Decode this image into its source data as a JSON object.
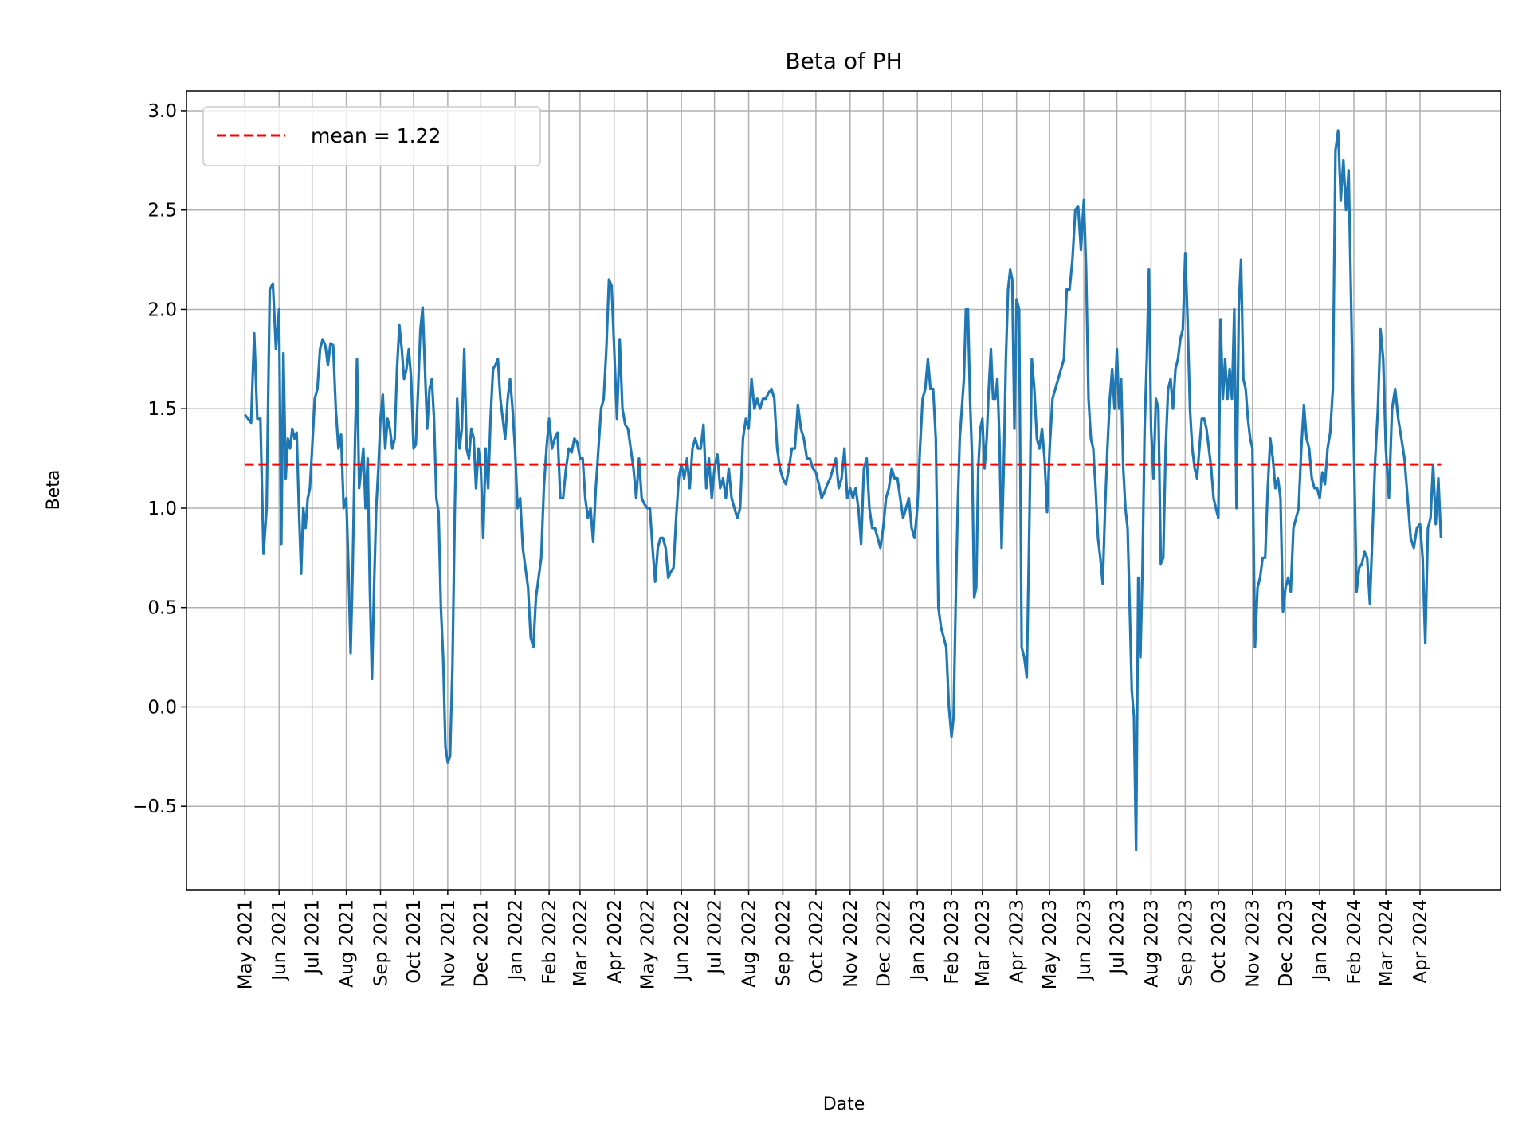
{
  "chart_data": {
    "type": "line",
    "title": "Beta of PH",
    "xlabel": "Date",
    "ylabel": "Beta",
    "ylim": [
      -0.92,
      3.1
    ],
    "xlim": [
      "2021-03-09",
      "2024-06-13"
    ],
    "grid": true,
    "legend_position": "top-left",
    "y_ticks": [
      -0.5,
      0.0,
      0.5,
      1.0,
      1.5,
      2.0,
      2.5,
      3.0
    ],
    "y_tick_labels": [
      "−0.5",
      "0.0",
      "0.5",
      "1.0",
      "1.5",
      "2.0",
      "2.5",
      "3.0"
    ],
    "x_ticks": [
      "2021-05-01",
      "2021-06-01",
      "2021-07-01",
      "2021-08-01",
      "2021-09-01",
      "2021-10-01",
      "2021-11-01",
      "2021-12-01",
      "2022-01-01",
      "2022-02-01",
      "2022-03-01",
      "2022-04-01",
      "2022-05-01",
      "2022-06-01",
      "2022-07-01",
      "2022-08-01",
      "2022-09-01",
      "2022-10-01",
      "2022-11-01",
      "2022-12-01",
      "2023-01-01",
      "2023-02-01",
      "2023-03-01",
      "2023-04-01",
      "2023-05-01",
      "2023-06-01",
      "2023-07-01",
      "2023-08-01",
      "2023-09-01",
      "2023-10-01",
      "2023-11-01",
      "2023-12-01",
      "2024-01-01",
      "2024-02-01",
      "2024-03-01",
      "2024-04-01"
    ],
    "x_tick_labels": [
      "May 2021",
      "Jun 2021",
      "Jul 2021",
      "Aug 2021",
      "Sep 2021",
      "Oct 2021",
      "Nov 2021",
      "Dec 2021",
      "Jan 2022",
      "Feb 2022",
      "Mar 2022",
      "Apr 2022",
      "May 2022",
      "Jun 2022",
      "Jul 2022",
      "Aug 2022",
      "Sep 2022",
      "Oct 2022",
      "Nov 2022",
      "Dec 2022",
      "Jan 2023",
      "Feb 2023",
      "Mar 2023",
      "Apr 2023",
      "May 2023",
      "Jun 2023",
      "Jul 2023",
      "Aug 2023",
      "Sep 2023",
      "Oct 2023",
      "Nov 2023",
      "Dec 2023",
      "Jan 2024",
      "Feb 2024",
      "Mar 2024",
      "Apr 2024"
    ],
    "colors": {
      "series": "#1f77b4",
      "mean": "#ff0000",
      "grid": "#b0b0b0"
    },
    "mean": {
      "label": "mean = 1.22",
      "value": 1.22,
      "style": "dashed"
    },
    "series": {
      "end_date": "2024-04-20",
      "monthly": [
        {
          "month": "2021-05",
          "values": [
            1.47,
            1.45,
            1.43,
            1.88,
            1.45,
            1.45,
            0.77,
            1.0,
            2.1,
            2.13,
            1.8
          ]
        },
        {
          "month": "2021-06",
          "values": [
            2.0,
            0.82,
            1.78,
            1.15,
            1.35,
            1.3,
            1.4,
            1.35,
            1.38,
            1.0,
            0.67,
            1.0,
            0.9,
            1.05,
            1.1
          ]
        },
        {
          "month": "2021-07",
          "values": [
            1.3,
            1.55,
            1.6,
            1.8,
            1.85,
            1.82,
            1.72,
            1.83,
            1.82,
            1.5,
            1.3,
            1.37,
            1.0
          ]
        },
        {
          "month": "2021-08",
          "values": [
            1.05,
            0.7,
            0.27,
            0.7,
            1.3,
            1.75,
            1.1,
            1.2,
            1.3,
            1.0,
            1.25,
            0.6,
            0.14,
            0.6,
            1.0,
            1.2
          ]
        },
        {
          "month": "2021-09",
          "values": [
            1.45,
            1.57,
            1.3,
            1.45,
            1.4,
            1.3,
            1.35,
            1.7,
            1.92,
            1.8,
            1.65,
            1.7,
            1.8,
            1.65
          ]
        },
        {
          "month": "2021-10",
          "values": [
            1.3,
            1.32,
            1.6,
            1.9,
            2.01,
            1.7,
            1.4,
            1.6,
            1.65,
            1.45,
            1.05,
            0.98,
            0.5,
            0.25,
            -0.2
          ]
        },
        {
          "month": "2021-11",
          "values": [
            -0.28,
            -0.25,
            0.2,
            1.0,
            1.55,
            1.3,
            1.4,
            1.8,
            1.3,
            1.25,
            1.4,
            1.35,
            1.1,
            1.3
          ]
        },
        {
          "month": "2021-12",
          "values": [
            1.2,
            0.85,
            1.3,
            1.1,
            1.45,
            1.7,
            1.72,
            1.75,
            1.55,
            1.45,
            1.35,
            1.55,
            1.65,
            1.5
          ]
        },
        {
          "month": "2022-01",
          "values": [
            1.3,
            1.0,
            1.05,
            0.8,
            0.7,
            0.6,
            0.35,
            0.3,
            0.55,
            0.65,
            0.75,
            1.1,
            1.3
          ]
        },
        {
          "month": "2022-02",
          "values": [
            1.45,
            1.3,
            1.35,
            1.38,
            1.05,
            1.05,
            1.2,
            1.3,
            1.28,
            1.35,
            1.33
          ]
        },
        {
          "month": "2022-03",
          "values": [
            1.25,
            1.25,
            1.05,
            0.95,
            1.0,
            0.83,
            1.1,
            1.3,
            1.5,
            1.55,
            1.8,
            2.15,
            2.12
          ]
        },
        {
          "month": "2022-04",
          "values": [
            1.8,
            1.45,
            1.85,
            1.5,
            1.42,
            1.4,
            1.3,
            1.2,
            1.05,
            1.25,
            1.05,
            1.02
          ]
        },
        {
          "month": "2022-05",
          "values": [
            1.0,
            1.0,
            0.8,
            0.63,
            0.8,
            0.85,
            0.85,
            0.8,
            0.65,
            0.68,
            0.7,
            0.95,
            1.15
          ]
        },
        {
          "month": "2022-06",
          "values": [
            1.22,
            1.15,
            1.25,
            1.1,
            1.3,
            1.35,
            1.3,
            1.3,
            1.42,
            1.1,
            1.25,
            1.05
          ]
        },
        {
          "month": "2022-07",
          "values": [
            1.2,
            1.27,
            1.1,
            1.15,
            1.05,
            1.2,
            1.05,
            1.0,
            0.95,
            1.0,
            1.35,
            1.45
          ]
        },
        {
          "month": "2022-08",
          "values": [
            1.4,
            1.65,
            1.5,
            1.55,
            1.5,
            1.55,
            1.55,
            1.58,
            1.6,
            1.55,
            1.3,
            1.2
          ]
        },
        {
          "month": "2022-09",
          "values": [
            1.15,
            1.12,
            1.2,
            1.3,
            1.3,
            1.52,
            1.4,
            1.35,
            1.25,
            1.25,
            1.2
          ]
        },
        {
          "month": "2022-10",
          "values": [
            1.18,
            1.12,
            1.05,
            1.08,
            1.12,
            1.15,
            1.2,
            1.25,
            1.1,
            1.15,
            1.3,
            1.05
          ]
        },
        {
          "month": "2022-11",
          "values": [
            1.1,
            1.05,
            1.1,
            1.0,
            0.82,
            1.2,
            1.25,
            1.0,
            0.9,
            0.9,
            0.85,
            0.8
          ]
        },
        {
          "month": "2022-12",
          "values": [
            0.9,
            1.05,
            1.1,
            1.2,
            1.15,
            1.15,
            1.05,
            0.95,
            1.0,
            1.05,
            0.9,
            0.85
          ]
        },
        {
          "month": "2023-01",
          "values": [
            1.0,
            1.3,
            1.55,
            1.6,
            1.75,
            1.6,
            1.6,
            1.35,
            0.5,
            0.4,
            0.35,
            0.3,
            0.0
          ]
        },
        {
          "month": "2023-02",
          "values": [
            -0.15,
            -0.05,
            0.5,
            1.0,
            1.35,
            1.5,
            1.65,
            2.0,
            2.0,
            1.55,
            1.25,
            0.55,
            0.6,
            1.2,
            1.4
          ]
        },
        {
          "month": "2023-03",
          "values": [
            1.45,
            1.2,
            1.35,
            1.6,
            1.8,
            1.55,
            1.55,
            1.65,
            1.35,
            0.8,
            1.2,
            1.75,
            2.1,
            2.2,
            2.15,
            1.4
          ]
        },
        {
          "month": "2023-04",
          "values": [
            2.05,
            2.0,
            0.3,
            0.25,
            0.15,
            0.9,
            1.75,
            1.6,
            1.35,
            1.3,
            1.4,
            1.25,
            0.98
          ]
        },
        {
          "month": "2023-05",
          "values": [
            1.3,
            1.55,
            1.6,
            1.65,
            1.7,
            1.75,
            2.1,
            2.1,
            2.25,
            2.5,
            2.52,
            2.3
          ]
        },
        {
          "month": "2023-06",
          "values": [
            2.55,
            2.2,
            1.55,
            1.35,
            1.3,
            1.1,
            0.85,
            0.75,
            0.62,
            1.0,
            1.3,
            1.55,
            1.7,
            1.5
          ]
        },
        {
          "month": "2023-07",
          "values": [
            1.8,
            1.5,
            1.65,
            1.2,
            1.0,
            0.9,
            0.5,
            0.08,
            -0.05,
            -0.72,
            0.65,
            0.25,
            0.7,
            1.4,
            1.75,
            2.2
          ]
        },
        {
          "month": "2023-08",
          "values": [
            1.4,
            1.15,
            1.55,
            1.5,
            0.72,
            0.75,
            1.3,
            1.6,
            1.65,
            1.5,
            1.7,
            1.75,
            1.85,
            1.9
          ]
        },
        {
          "month": "2023-09",
          "values": [
            2.28,
            1.95,
            1.5,
            1.3,
            1.2,
            1.15,
            1.3,
            1.45,
            1.45,
            1.4,
            1.3,
            1.2,
            1.05,
            1.0
          ]
        },
        {
          "month": "2023-10",
          "values": [
            0.95,
            1.95,
            1.55,
            1.75,
            1.55,
            1.7,
            1.55,
            2.0,
            1.0,
            2.02,
            2.25,
            1.65,
            1.6,
            1.45,
            1.35
          ]
        },
        {
          "month": "2023-11",
          "values": [
            1.3,
            0.3,
            0.6,
            0.65,
            0.75,
            0.75,
            1.1,
            1.35,
            1.25,
            1.1,
            1.15,
            1.05,
            0.48
          ]
        },
        {
          "month": "2023-12",
          "values": [
            0.6,
            0.65,
            0.58,
            0.9,
            0.95,
            1.0,
            1.3,
            1.52,
            1.35,
            1.3,
            1.15,
            1.1,
            1.1
          ]
        },
        {
          "month": "2024-01",
          "values": [
            1.05,
            1.18,
            1.12,
            1.3,
            1.38,
            1.6,
            2.8,
            2.9,
            2.55,
            2.75,
            2.5,
            2.7,
            2.0
          ]
        },
        {
          "month": "2024-02",
          "values": [
            1.3,
            0.58,
            0.7,
            0.72,
            0.78,
            0.75,
            0.52,
            0.88,
            1.25,
            1.5,
            1.9,
            1.75
          ]
        },
        {
          "month": "2024-03",
          "values": [
            1.3,
            1.05,
            1.5,
            1.6,
            1.45,
            1.35,
            1.25,
            1.05,
            0.85,
            0.8,
            0.9
          ]
        },
        {
          "month": "2024-04",
          "values": [
            0.92,
            0.75,
            0.32,
            0.9,
            0.95,
            1.22,
            0.92,
            1.15,
            0.85
          ]
        }
      ]
    }
  }
}
